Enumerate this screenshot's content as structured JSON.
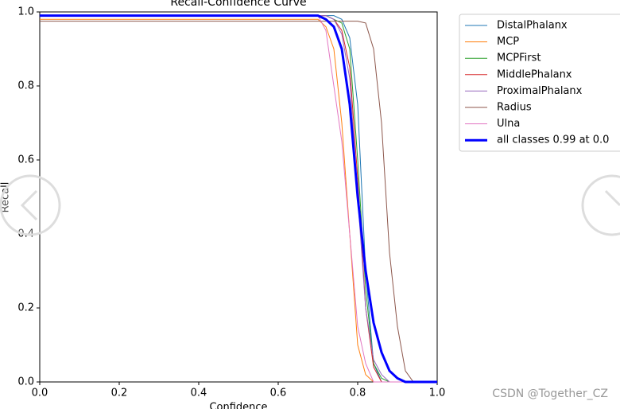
{
  "chart_data": {
    "type": "line",
    "title": "Recall-Confidence Curve",
    "xlabel": "Confidence",
    "ylabel": "Recall",
    "x": [
      0,
      0.1,
      0.2,
      0.3,
      0.4,
      0.5,
      0.6,
      0.65,
      0.7,
      0.72,
      0.74,
      0.76,
      0.78,
      0.8,
      0.82,
      0.84,
      0.86,
      0.88,
      0.9,
      0.92,
      0.94,
      1.0
    ],
    "series": [
      {
        "name": "DistalPhalanx",
        "color": "#1f77b4",
        "width": 1,
        "values": [
          0.99,
          0.99,
          0.99,
          0.99,
          0.99,
          0.99,
          0.99,
          0.99,
          0.99,
          0.99,
          0.99,
          0.98,
          0.93,
          0.75,
          0.3,
          0.05,
          0,
          0,
          0,
          0,
          0,
          0
        ]
      },
      {
        "name": "MCP",
        "color": "#ff7f0e",
        "width": 1,
        "values": [
          0.98,
          0.98,
          0.98,
          0.98,
          0.98,
          0.98,
          0.98,
          0.98,
          0.98,
          0.96,
          0.9,
          0.7,
          0.4,
          0.1,
          0.02,
          0,
          0,
          0,
          0,
          0,
          0,
          0
        ]
      },
      {
        "name": "MCPFirst",
        "color": "#2ca02c",
        "width": 1,
        "values": [
          0.99,
          0.99,
          0.99,
          0.99,
          0.99,
          0.99,
          0.99,
          0.99,
          0.99,
          0.99,
          0.98,
          0.97,
          0.9,
          0.6,
          0.25,
          0.05,
          0.01,
          0,
          0,
          0,
          0,
          0
        ]
      },
      {
        "name": "MiddlePhalanx",
        "color": "#d62728",
        "width": 1,
        "values": [
          0.99,
          0.99,
          0.99,
          0.99,
          0.99,
          0.99,
          0.99,
          0.99,
          0.99,
          0.99,
          0.98,
          0.95,
          0.85,
          0.55,
          0.2,
          0.04,
          0,
          0,
          0,
          0,
          0,
          0
        ]
      },
      {
        "name": "ProximalPhalanx",
        "color": "#9467bd",
        "width": 1,
        "values": [
          0.99,
          0.99,
          0.99,
          0.99,
          0.99,
          0.99,
          0.99,
          0.99,
          0.99,
          0.99,
          0.98,
          0.94,
          0.82,
          0.5,
          0.2,
          0.06,
          0.02,
          0,
          0,
          0,
          0,
          0
        ]
      },
      {
        "name": "Radius",
        "color": "#8c564b",
        "width": 1,
        "values": [
          0.975,
          0.975,
          0.975,
          0.975,
          0.975,
          0.975,
          0.975,
          0.975,
          0.975,
          0.975,
          0.975,
          0.975,
          0.975,
          0.975,
          0.97,
          0.9,
          0.7,
          0.35,
          0.15,
          0.03,
          0,
          0
        ]
      },
      {
        "name": "Ulna",
        "color": "#e377c2",
        "width": 1,
        "values": [
          0.99,
          0.99,
          0.99,
          0.99,
          0.99,
          0.99,
          0.99,
          0.99,
          0.99,
          0.95,
          0.8,
          0.65,
          0.4,
          0.15,
          0.05,
          0,
          0,
          0,
          0,
          0,
          0,
          0
        ]
      },
      {
        "name": "all classes 0.99 at 0.0",
        "color": "#0000ff",
        "width": 3,
        "values": [
          0.99,
          0.99,
          0.99,
          0.99,
          0.99,
          0.99,
          0.99,
          0.99,
          0.99,
          0.98,
          0.96,
          0.9,
          0.75,
          0.5,
          0.3,
          0.16,
          0.08,
          0.03,
          0.01,
          0,
          0,
          0
        ]
      }
    ],
    "xlim": [
      0,
      1
    ],
    "ylim": [
      0,
      1
    ],
    "xticks": [
      {
        "value": 0,
        "label": "0.0"
      },
      0.2,
      0.4,
      0.6,
      0.8,
      {
        "value": 1,
        "label": "1.0"
      }
    ],
    "yticks": [
      {
        "value": 0,
        "label": "0.0"
      },
      0.2,
      0.4,
      0.6,
      0.8,
      {
        "value": 1,
        "label": "1.0"
      }
    ]
  },
  "watermark": "CSDN @Together_CZ"
}
